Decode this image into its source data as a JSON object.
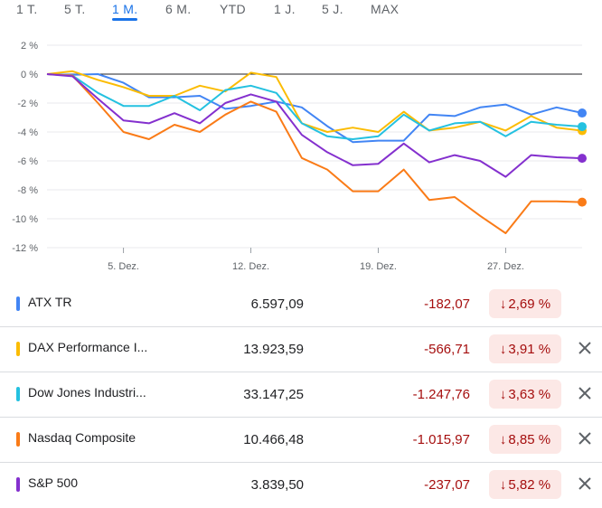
{
  "tabs": [
    {
      "label": "1 T.",
      "active": false
    },
    {
      "label": "5 T.",
      "active": false
    },
    {
      "label": "1 M.",
      "active": true
    },
    {
      "label": "6 M.",
      "active": false
    },
    {
      "label": "YTD",
      "active": false
    },
    {
      "label": "1 J.",
      "active": false
    },
    {
      "label": "5 J.",
      "active": false
    },
    {
      "label": "MAX",
      "active": false
    }
  ],
  "chart_data": {
    "type": "line",
    "y_ticks": [
      "2 %",
      "0 %",
      "-2 %",
      "-4 %",
      "-6 %",
      "-8 %",
      "-10 %",
      "-12 %"
    ],
    "ylim": [
      -12,
      2
    ],
    "x_ticks": [
      {
        "label": "5. Dez.",
        "x": 3
      },
      {
        "label": "12. Dez.",
        "x": 8
      },
      {
        "label": "19. Dez.",
        "x": 13
      },
      {
        "label": "27. Dez.",
        "x": 18
      }
    ],
    "xlim": [
      0,
      21
    ],
    "grid": true,
    "series": [
      {
        "name": "ATX TR",
        "color": "#4285f4",
        "points": [
          [
            0,
            0
          ],
          [
            1,
            -0.05
          ],
          [
            2,
            0
          ],
          [
            3,
            -0.6
          ],
          [
            4,
            -1.6
          ],
          [
            5,
            -1.6
          ],
          [
            6,
            -1.5
          ],
          [
            7,
            -2.4
          ],
          [
            8,
            -2.2
          ],
          [
            9,
            -1.9
          ],
          [
            10,
            -2.3
          ],
          [
            11,
            -3.6
          ],
          [
            12,
            -4.7
          ],
          [
            13,
            -4.6
          ],
          [
            14,
            -4.6
          ],
          [
            15,
            -2.8
          ],
          [
            16,
            -2.9
          ],
          [
            17,
            -2.3
          ],
          [
            18,
            -2.1
          ],
          [
            19,
            -2.8
          ],
          [
            20,
            -2.3
          ],
          [
            21,
            -2.69
          ]
        ]
      },
      {
        "name": "DAX Performance Index",
        "color": "#fbbc04",
        "points": [
          [
            0,
            0
          ],
          [
            1,
            0.2
          ],
          [
            2,
            -0.4
          ],
          [
            3,
            -0.9
          ],
          [
            4,
            -1.5
          ],
          [
            5,
            -1.5
          ],
          [
            6,
            -0.8
          ],
          [
            7,
            -1.2
          ],
          [
            8,
            0.1
          ],
          [
            9,
            -0.2
          ],
          [
            10,
            -3.4
          ],
          [
            11,
            -4.0
          ],
          [
            12,
            -3.7
          ],
          [
            13,
            -4.0
          ],
          [
            14,
            -2.6
          ],
          [
            15,
            -3.9
          ],
          [
            16,
            -3.7
          ],
          [
            17,
            -3.3
          ],
          [
            18,
            -3.9
          ],
          [
            19,
            -2.9
          ],
          [
            20,
            -3.7
          ],
          [
            21,
            -3.91
          ]
        ]
      },
      {
        "name": "Dow Jones Industrial Average",
        "color": "#24c1e0",
        "points": [
          [
            0,
            0
          ],
          [
            1,
            -0.1
          ],
          [
            2,
            -1.3
          ],
          [
            3,
            -2.2
          ],
          [
            4,
            -2.2
          ],
          [
            5,
            -1.5
          ],
          [
            6,
            -2.5
          ],
          [
            7,
            -1.1
          ],
          [
            8,
            -0.8
          ],
          [
            9,
            -1.3
          ],
          [
            10,
            -3.4
          ],
          [
            11,
            -4.3
          ],
          [
            12,
            -4.5
          ],
          [
            13,
            -4.3
          ],
          [
            14,
            -2.8
          ],
          [
            15,
            -3.9
          ],
          [
            16,
            -3.4
          ],
          [
            17,
            -3.3
          ],
          [
            18,
            -4.3
          ],
          [
            19,
            -3.3
          ],
          [
            20,
            -3.5
          ],
          [
            21,
            -3.63
          ]
        ]
      },
      {
        "name": "Nasdaq Composite",
        "color": "#fa7b17",
        "points": [
          [
            0,
            0
          ],
          [
            1,
            -0.1
          ],
          [
            2,
            -2.0
          ],
          [
            3,
            -4.0
          ],
          [
            4,
            -4.5
          ],
          [
            5,
            -3.5
          ],
          [
            6,
            -4.0
          ],
          [
            7,
            -2.8
          ],
          [
            8,
            -1.9
          ],
          [
            9,
            -2.6
          ],
          [
            10,
            -5.8
          ],
          [
            11,
            -6.6
          ],
          [
            12,
            -8.1
          ],
          [
            13,
            -8.1
          ],
          [
            14,
            -6.6
          ],
          [
            15,
            -8.7
          ],
          [
            16,
            -8.5
          ],
          [
            17,
            -9.8
          ],
          [
            18,
            -11.0
          ],
          [
            19,
            -8.8
          ],
          [
            20,
            -8.8
          ],
          [
            21,
            -8.85
          ]
        ]
      },
      {
        "name": "S&P 500",
        "color": "#8430ce",
        "points": [
          [
            0,
            0
          ],
          [
            1,
            -0.15
          ],
          [
            2,
            -1.7
          ],
          [
            3,
            -3.2
          ],
          [
            4,
            -3.4
          ],
          [
            5,
            -2.7
          ],
          [
            6,
            -3.4
          ],
          [
            7,
            -2.0
          ],
          [
            8,
            -1.4
          ],
          [
            9,
            -1.9
          ],
          [
            10,
            -4.2
          ],
          [
            11,
            -5.4
          ],
          [
            12,
            -6.3
          ],
          [
            13,
            -6.2
          ],
          [
            14,
            -4.8
          ],
          [
            15,
            -6.1
          ],
          [
            16,
            -5.6
          ],
          [
            17,
            -6.0
          ],
          [
            18,
            -7.1
          ],
          [
            19,
            -5.6
          ],
          [
            20,
            -5.75
          ],
          [
            21,
            -5.82
          ]
        ]
      }
    ]
  },
  "rows": [
    {
      "name": "ATX TR",
      "color": "#4285f4",
      "price": "6.597,09",
      "change": "-182,07",
      "percent": "2,69 %",
      "closable": false
    },
    {
      "name": "DAX Performance I...",
      "color": "#fbbc04",
      "price": "13.923,59",
      "change": "-566,71",
      "percent": "3,91 %",
      "closable": true
    },
    {
      "name": "Dow Jones Industri...",
      "color": "#24c1e0",
      "price": "33.147,25",
      "change": "-1.247,76",
      "percent": "3,63 %",
      "closable": true
    },
    {
      "name": "Nasdaq Composite",
      "color": "#fa7b17",
      "price": "10.466,48",
      "change": "-1.015,97",
      "percent": "8,85 %",
      "closable": true
    },
    {
      "name": "S&P 500",
      "color": "#8430ce",
      "price": "3.839,50",
      "change": "-237,07",
      "percent": "5,82 %",
      "closable": true
    }
  ],
  "icons": {
    "change_arrow": "arrow-down-icon",
    "remove": "close-icon"
  }
}
